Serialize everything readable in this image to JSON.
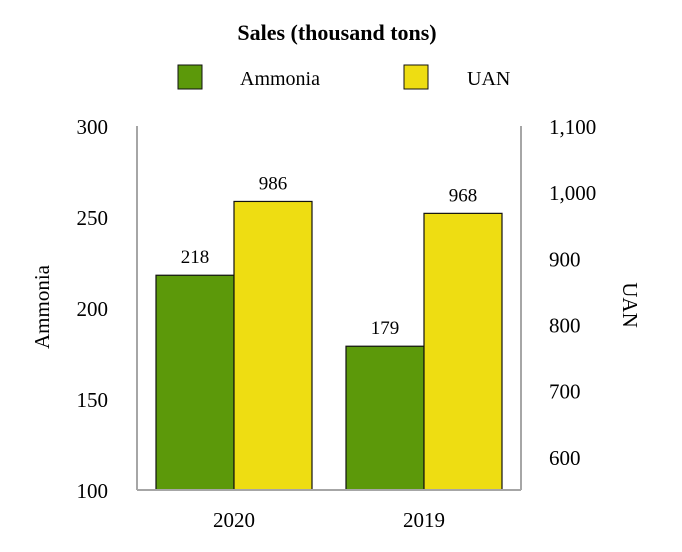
{
  "chart_data": {
    "type": "bar",
    "title": "Sales (thousand tons)",
    "categories": [
      "2020",
      "2019"
    ],
    "series": [
      {
        "name": "Ammonia",
        "values": [
          218,
          179
        ],
        "axis": "left",
        "color": "#5c990a"
      },
      {
        "name": "UAN",
        "values": [
          986,
          968
        ],
        "axis": "right",
        "color": "#eedd12"
      }
    ],
    "left_axis": {
      "label": "Ammonia",
      "ylim": [
        100,
        300
      ],
      "ticks": [
        100,
        150,
        200,
        250,
        300
      ],
      "tick_labels": [
        "100",
        "150",
        "200",
        "250",
        "300"
      ]
    },
    "right_axis": {
      "label": "UAN",
      "ylim": [
        550,
        1100
      ],
      "ticks": [
        600,
        700,
        800,
        900,
        1000,
        1100
      ],
      "tick_labels": [
        "600",
        "700",
        "800",
        "900",
        "1,000",
        "1,100"
      ]
    },
    "data_labels": [
      [
        "218",
        "179"
      ],
      [
        "986",
        "968"
      ]
    ],
    "legend_position": "top",
    "grid": false
  },
  "colors": {
    "axis_line": "#a6a6a6",
    "bar_edge": "#111111"
  }
}
